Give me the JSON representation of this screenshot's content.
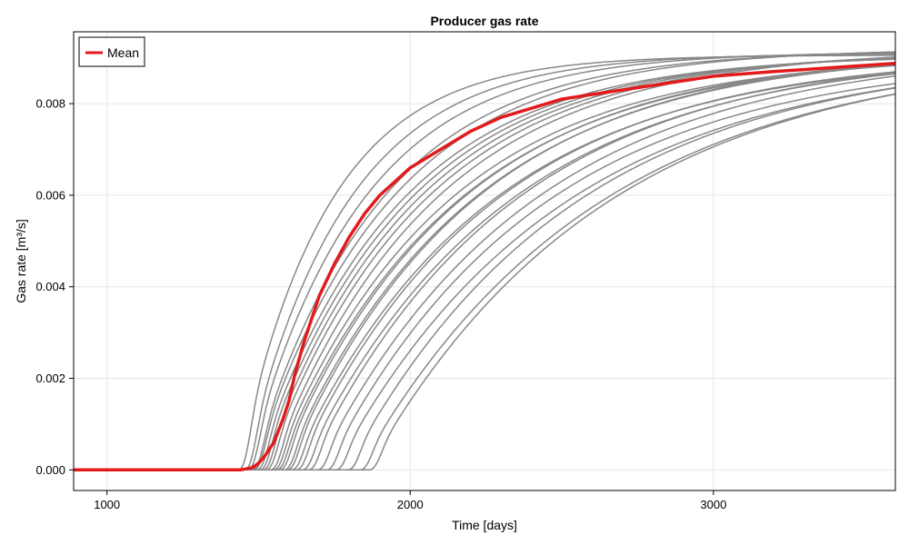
{
  "chart_data": {
    "type": "line",
    "title": "Producer gas rate",
    "xlabel": "Time [days]",
    "ylabel": "Gas rate [m³/s]",
    "xlim": [
      890,
      3600
    ],
    "ylim": [
      -0.00045,
      0.00957
    ],
    "xticks": [
      1000,
      2000,
      3000
    ],
    "xtick_labels": [
      "1000",
      "2000",
      "3000"
    ],
    "yticks": [
      0.0,
      0.002,
      0.004,
      0.006,
      0.008
    ],
    "ytick_labels": [
      "0.000",
      "0.002",
      "0.004",
      "0.006",
      "0.008"
    ],
    "grid": true,
    "legend": {
      "position": "top-left",
      "entries": [
        "Mean"
      ]
    },
    "colors": {
      "ensemble": "#888888",
      "mean": "#e31a1c"
    },
    "ensemble_curve_params": {
      "note": "each gray curve: rate(t)=0 for t<t0; rise then approach plateau",
      "plateau": 0.0092,
      "curves": [
        {
          "t0": 1430,
          "k": 0.0045
        },
        {
          "t0": 1450,
          "k": 0.004
        },
        {
          "t0": 1460,
          "k": 0.0036
        },
        {
          "t0": 1475,
          "k": 0.0032
        },
        {
          "t0": 1480,
          "k": 0.003
        },
        {
          "t0": 1490,
          "k": 0.0029
        },
        {
          "t0": 1500,
          "k": 0.0028
        },
        {
          "t0": 1510,
          "k": 0.0027
        },
        {
          "t0": 1520,
          "k": 0.0026
        },
        {
          "t0": 1535,
          "k": 0.0025
        },
        {
          "t0": 1545,
          "k": 0.0024
        },
        {
          "t0": 1555,
          "k": 0.0023
        },
        {
          "t0": 1565,
          "k": 0.0023
        },
        {
          "t0": 1580,
          "k": 0.0022
        },
        {
          "t0": 1590,
          "k": 0.0022
        },
        {
          "t0": 1605,
          "k": 0.0021
        },
        {
          "t0": 1620,
          "k": 0.0021
        },
        {
          "t0": 1640,
          "k": 0.002
        },
        {
          "t0": 1660,
          "k": 0.002
        },
        {
          "t0": 1690,
          "k": 0.0019
        },
        {
          "t0": 1720,
          "k": 0.0019
        },
        {
          "t0": 1750,
          "k": 0.0018
        },
        {
          "t0": 1790,
          "k": 0.0018
        },
        {
          "t0": 1830,
          "k": 0.0017
        },
        {
          "t0": 1860,
          "k": 0.0017
        }
      ]
    },
    "series": [
      {
        "name": "Mean",
        "x": [
          890,
          1000,
          1200,
          1400,
          1440,
          1480,
          1500,
          1520,
          1550,
          1580,
          1600,
          1620,
          1650,
          1680,
          1700,
          1750,
          1800,
          1850,
          1900,
          1950,
          2000,
          2100,
          2200,
          2300,
          2400,
          2500,
          2600,
          2800,
          3000,
          3200,
          3400,
          3600
        ],
        "y": [
          0.0,
          0.0,
          0.0,
          0.0,
          0.0,
          5e-05,
          0.00015,
          0.0003,
          0.0006,
          0.0011,
          0.0015,
          0.0021,
          0.0028,
          0.0034,
          0.0038,
          0.0045,
          0.0051,
          0.0056,
          0.006,
          0.0063,
          0.0066,
          0.007,
          0.0074,
          0.0077,
          0.0079,
          0.0081,
          0.0082,
          0.0084,
          0.0086,
          0.0087,
          0.00879,
          0.00888
        ]
      }
    ]
  }
}
